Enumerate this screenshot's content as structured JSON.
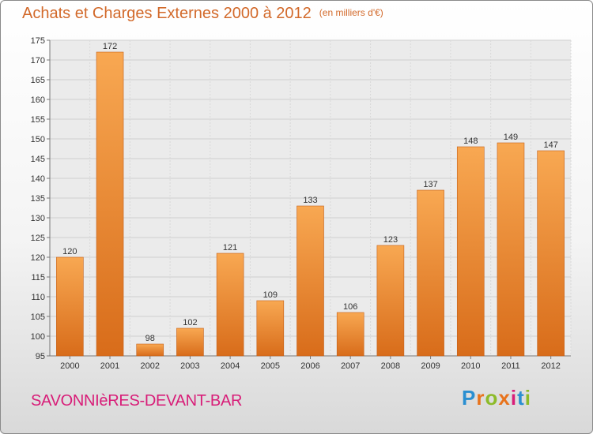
{
  "title": "Achats et Charges Externes 2000 à 2012",
  "unit": "(en milliers d'€)",
  "commune": "SAVONNIèRES-DEVANT-BAR",
  "logo": {
    "letters": [
      "P",
      "r",
      "o",
      "x",
      "i",
      "t",
      "i"
    ],
    "colors": [
      "#2a8fd1",
      "#e8731c",
      "#8dbb2a",
      "#e8731c",
      "#d81d78",
      "#2a8fd1",
      "#8dbb2a"
    ]
  },
  "colors": {
    "bar_light": "#f8a852",
    "bar_dark": "#d86c1a",
    "title": "#d2692a",
    "commune": "#d81d78"
  },
  "chart_data": {
    "type": "bar",
    "title": "Achats et Charges Externes 2000 à 2012",
    "categories": [
      "2000",
      "2001",
      "2002",
      "2003",
      "2004",
      "2005",
      "2006",
      "2007",
      "2008",
      "2009",
      "2010",
      "2011",
      "2012"
    ],
    "values": [
      120,
      172,
      98,
      102,
      121,
      109,
      133,
      106,
      123,
      137,
      148,
      149,
      147
    ],
    "ylim": [
      95,
      175
    ],
    "yticks": [
      95,
      100,
      105,
      110,
      115,
      120,
      125,
      130,
      135,
      140,
      145,
      150,
      155,
      160,
      165,
      170,
      175
    ],
    "grid": true
  }
}
